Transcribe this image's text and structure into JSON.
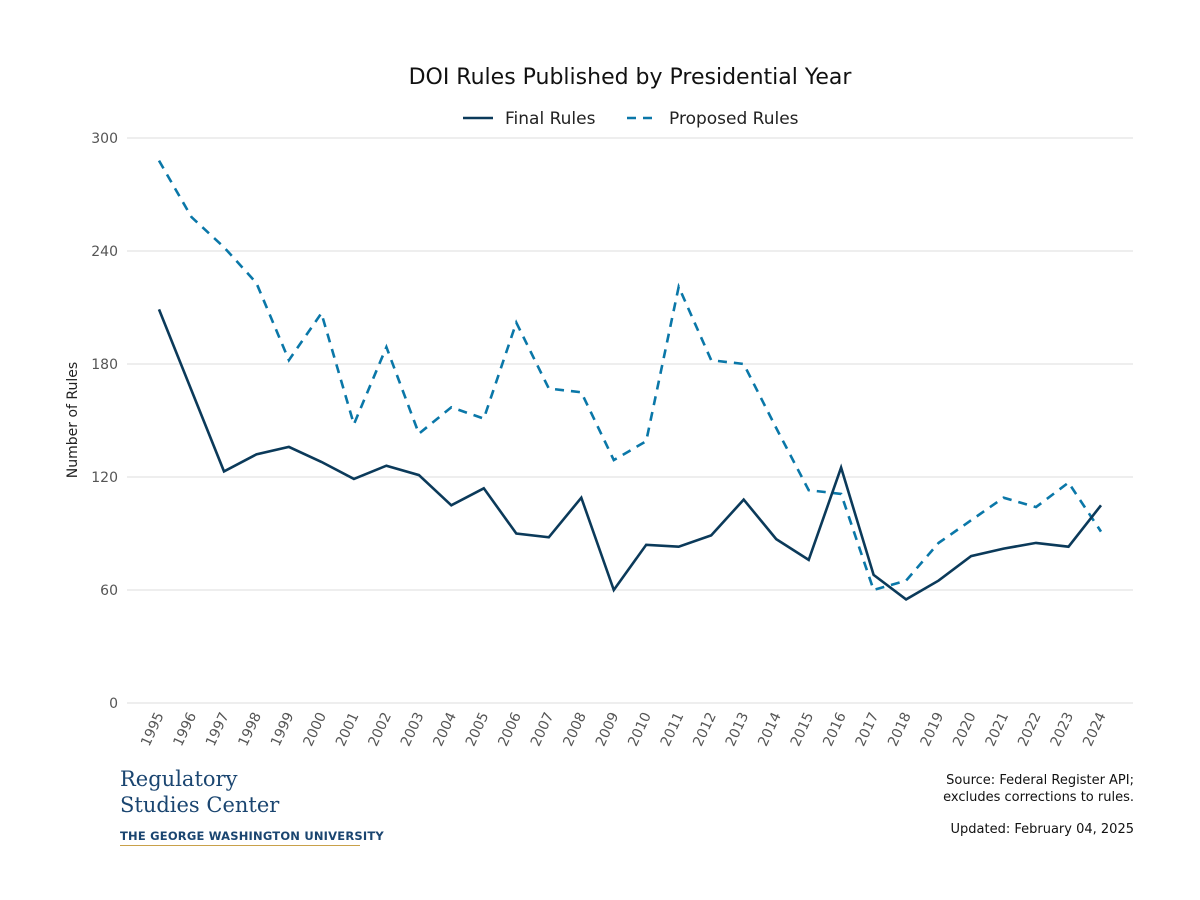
{
  "chart_data": {
    "type": "line",
    "title": "DOI Rules Published by Presidential Year",
    "xlabel": "",
    "ylabel": "Number of Rules",
    "ylim": [
      0,
      300
    ],
    "yticks": [
      0,
      60,
      120,
      180,
      240,
      300
    ],
    "grid": true,
    "legend_position": "top-center",
    "x": [
      1995,
      1996,
      1997,
      1998,
      1999,
      2000,
      2001,
      2002,
      2003,
      2004,
      2005,
      2006,
      2007,
      2008,
      2009,
      2010,
      2011,
      2012,
      2013,
      2014,
      2015,
      2016,
      2017,
      2018,
      2019,
      2020,
      2021,
      2022,
      2023,
      2024
    ],
    "series": [
      {
        "name": "Final Rules",
        "color": "#0b3a5a",
        "style": "solid",
        "values": [
          209,
          166,
          123,
          132,
          136,
          128,
          119,
          126,
          121,
          105,
          114,
          90,
          88,
          109,
          60,
          84,
          83,
          89,
          108,
          87,
          76,
          125,
          68,
          55,
          65,
          78,
          82,
          85,
          83,
          105
        ]
      },
      {
        "name": "Proposed Rules",
        "color": "#0a77a8",
        "style": "dashed",
        "values": [
          288,
          258,
          242,
          223,
          182,
          207,
          148,
          189,
          143,
          157,
          151,
          202,
          167,
          165,
          129,
          139,
          221,
          182,
          180,
          146,
          113,
          111,
          60,
          65,
          85,
          97,
          109,
          104,
          117,
          91
        ]
      }
    ]
  },
  "footer": {
    "logo_line1": "Regulatory",
    "logo_line2": "Studies Center",
    "logo_university": "THE GEORGE WASHINGTON UNIVERSITY",
    "source_line1": "Source: Federal Register API;",
    "source_line2": "excludes corrections to rules.",
    "updated": "Updated: February 04, 2025"
  }
}
